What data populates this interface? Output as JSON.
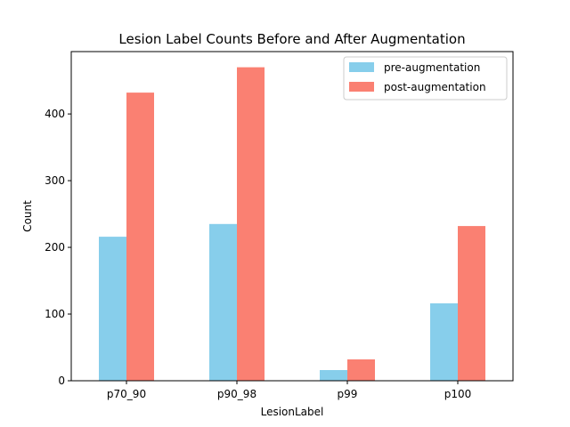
{
  "chart_data": {
    "type": "bar",
    "title": "Lesion Label Counts Before and After Augmentation",
    "xlabel": "LesionLabel",
    "ylabel": "Count",
    "categories": [
      "p70_90",
      "p90_98",
      "p99",
      "p100"
    ],
    "series": [
      {
        "name": "pre-augmentation",
        "values": [
          216,
          235,
          16,
          116
        ],
        "color": "#87ceeb"
      },
      {
        "name": "post-augmentation",
        "values": [
          432,
          470,
          32,
          232
        ],
        "color": "#fa8072"
      }
    ],
    "ylim": [
      0,
      493.5
    ],
    "yticks": [
      "0",
      "100",
      "200",
      "300",
      "400"
    ],
    "grid": false,
    "legend_position": "top-right"
  }
}
